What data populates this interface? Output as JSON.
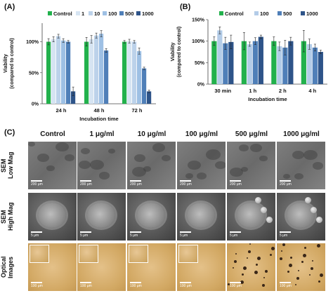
{
  "panels": {
    "a": "(A)",
    "b": "(B)",
    "c": "(C)"
  },
  "chart_data": [
    {
      "type": "bar",
      "panel": "(A)",
      "categories": [
        "24 h",
        "48 h",
        "72 h"
      ],
      "series": [
        {
          "name": "Control",
          "color": "#22b14c",
          "values": [
            100,
            100,
            100
          ],
          "errors": [
            5,
            7,
            2
          ]
        },
        {
          "name": "1",
          "color": "#d6e4f2",
          "values": [
            104,
            104,
            101
          ],
          "errors": [
            4,
            6,
            3
          ]
        },
        {
          "name": "10",
          "color": "#bcd2ea",
          "values": [
            109,
            110,
            100
          ],
          "errors": [
            3,
            4,
            2
          ]
        },
        {
          "name": "100",
          "color": "#9ec0e4",
          "values": [
            102,
            113,
            85
          ],
          "errors": [
            3,
            5,
            5
          ]
        },
        {
          "name": "500",
          "color": "#4f7fb8",
          "values": [
            100,
            86,
            57
          ],
          "errors": [
            2,
            3,
            2
          ]
        },
        {
          "name": "1000",
          "color": "#2e5489",
          "values": [
            20,
            null,
            20
          ],
          "errors": [
            7,
            null,
            2
          ]
        }
      ],
      "xlabel": "Incubation time",
      "ylabel": "Viability\n(compared to control)",
      "yticks": [
        "0%",
        "50%",
        "100%"
      ],
      "ylim": [
        0,
        130
      ],
      "legend": "top"
    },
    {
      "type": "bar",
      "panel": "(B)",
      "categories": [
        "30 min",
        "1 h",
        "2 h",
        "4 h"
      ],
      "series": [
        {
          "name": "Control",
          "color": "#22b14c",
          "values": [
            100,
            100,
            100,
            100
          ],
          "errors": [
            10,
            20,
            10,
            25
          ]
        },
        {
          "name": "100",
          "color": "#b3cce8",
          "values": [
            125,
            93,
            88,
            93
          ],
          "errors": [
            8,
            5,
            10,
            12
          ]
        },
        {
          "name": "500",
          "color": "#4f7fb8",
          "values": [
            95,
            100,
            85,
            85
          ],
          "errors": [
            14,
            8,
            17,
            8
          ]
        },
        {
          "name": "1000",
          "color": "#2e5489",
          "values": [
            98,
            110,
            100,
            75
          ],
          "errors": [
            16,
            4,
            9,
            4
          ]
        }
      ],
      "xlabel": "Incubation time",
      "ylabel": "Viability\n(compared to control)",
      "yticks": [
        "0%",
        "50%",
        "100%",
        "150%"
      ],
      "ylim": [
        0,
        150
      ],
      "legend": "top"
    }
  ],
  "grid": {
    "columns": [
      "Control",
      "1 μg/ml",
      "10 μg/ml",
      "100 μg/ml",
      "500 μg/ml",
      "1000 μg/ml"
    ],
    "rows": [
      "SEM\nLow Mag",
      "SEM\nHigh Mag",
      "Optical\nImages"
    ],
    "scale_low": "200 μm",
    "scale_high": "5 μm",
    "scale_optical": "100 μm"
  }
}
